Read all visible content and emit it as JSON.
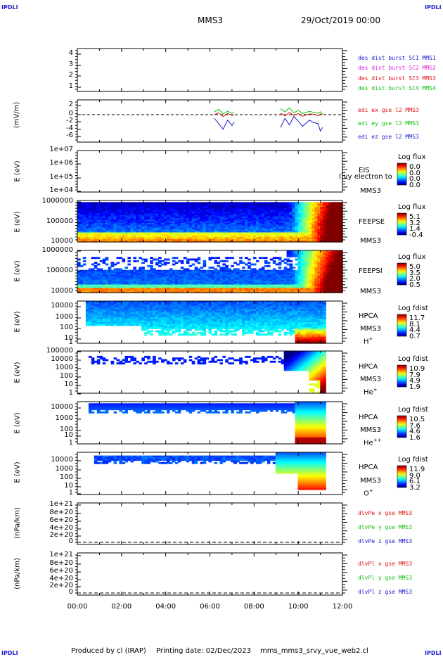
{
  "header": {
    "corner_tl": "IPDLI",
    "corner_tr": "IPDLI",
    "corner_bl": "IPDLI",
    "corner_br": "IPDLI",
    "mission": "MMS3",
    "date": "29/Oct/2019 00:00"
  },
  "footer": {
    "produced": "Produced by cl (IRAP)",
    "printing": "Printing date: 02/Dec/2023",
    "file": "mms_mms3_srvy_vue_web2.cl"
  },
  "colors": {
    "mms1": "#1a1ad0",
    "mms2": "#e020e0",
    "mms3": "#e01010",
    "mms4": "#10c010"
  },
  "chart_data": [
    {
      "type": "line",
      "panel": "dist",
      "ylabel": "",
      "yticks": [
        "4",
        "3",
        "2",
        "1"
      ],
      "ylim": [
        1,
        4
      ],
      "legend": [
        "des dist burst SC1 MMS1",
        "des dist burst SC2 MMS2",
        "des dist burst SC3 MMS3",
        "des dist burst SC4 MMS4"
      ],
      "series": []
    },
    {
      "type": "line",
      "panel": "edi",
      "ylabel": "(mV/m)",
      "yticks": [
        "2",
        "0",
        "-2",
        "-4",
        "-6"
      ],
      "ylim": [
        -6,
        2
      ],
      "legend": [
        "edi ex gse l2 MMS3",
        "edi ey gse l2 MMS3",
        "edi ez gse l2 MMS3"
      ],
      "x_hours": [
        6.2,
        6.4,
        6.6,
        6.8,
        7.0,
        7.1,
        9.2,
        9.4,
        9.6,
        9.8,
        10.0,
        10.2,
        10.5,
        10.7,
        10.9,
        11.0,
        11.1
      ],
      "series": [
        {
          "name": "edi ex gse l2 MMS3",
          "values": [
            0,
            0.5,
            -0.5,
            0.3,
            -0.2,
            0,
            0.4,
            -0.3,
            0.6,
            -0.2,
            0.3,
            -0.4,
            0.2,
            0.1,
            -0.3,
            0.2,
            0
          ]
        },
        {
          "name": "edi ey gse l2 MMS3",
          "values": [
            0.8,
            1.5,
            0.2,
            0.9,
            0.4,
            0.6,
            1.6,
            0.8,
            1.9,
            0.5,
            1.2,
            0.3,
            0.9,
            0.6,
            0.4,
            0.8,
            0.2
          ]
        },
        {
          "name": "edi ez gse l2 MMS3",
          "values": [
            -1,
            -2.5,
            -4,
            -1.5,
            -3,
            -2,
            -3.5,
            -1,
            -2.8,
            -0.5,
            -1.8,
            -3.2,
            -1.5,
            -2.2,
            -2.5,
            -4.5,
            -3.5
          ]
        }
      ]
    },
    {
      "type": "heatmap",
      "panel": "eis",
      "ylabel": "E (eV)",
      "yticks": [
        "1e+07",
        "1e+06",
        "1e+05",
        "1e+04"
      ],
      "ylim": [
        10000,
        10000000
      ],
      "side": [
        "EIS",
        "MMS3"
      ],
      "overlap_label": "l)vy electron to",
      "cbar_title": "Log flux",
      "cbar_values": [
        "0.0",
        "0.0",
        "0.0",
        "0.0"
      ]
    },
    {
      "type": "heatmap",
      "panel": "feepse",
      "ylabel": "E (eV)",
      "yticks": [
        "1000000",
        "100000",
        "10000"
      ],
      "ylim": [
        10000,
        1000000
      ],
      "side": [
        "FEEPSE",
        "MMS3"
      ],
      "cbar_title": "Log flux",
      "cbar_values": [
        "5.1",
        "3.2",
        "1.4",
        "-0.4"
      ]
    },
    {
      "type": "heatmap",
      "panel": "feepsi",
      "ylabel": "E (eV)",
      "yticks": [
        "1000000",
        "100000",
        "10000"
      ],
      "ylim": [
        10000,
        1000000
      ],
      "side": [
        "FEEPSI",
        "MMS3"
      ],
      "cbar_title": "Log flux",
      "cbar_values": [
        "5.0",
        "3.5",
        "2.0",
        "0.5"
      ]
    },
    {
      "type": "heatmap",
      "panel": "hpca_h",
      "ylabel": "E (eV)",
      "yticks": [
        "10000",
        "1000",
        "100",
        "10",
        "1"
      ],
      "ylim": [
        1,
        40000
      ],
      "side": [
        "HPCA",
        "MMS3"
      ],
      "species": "H",
      "species_sup": "+",
      "cbar_title": "Log fdist",
      "cbar_values": [
        "11.7",
        "8.1",
        "4.4",
        "0.7"
      ]
    },
    {
      "type": "heatmap",
      "panel": "hpca_he",
      "ylabel": "E (eV)",
      "yticks": [
        "100000",
        "10000",
        "1000",
        "100",
        "10",
        "1"
      ],
      "ylim": [
        1,
        100000
      ],
      "side": [
        "HPCA",
        "MMS3"
      ],
      "species": "He",
      "species_sup": "+",
      "cbar_title": "Log fdist",
      "cbar_values": [
        "10.9",
        "7.9",
        "4.9",
        "1.9"
      ]
    },
    {
      "type": "heatmap",
      "panel": "hpca_he2",
      "ylabel": "E (eV)",
      "yticks": [
        "10000",
        "1000",
        "100",
        "10",
        "1"
      ],
      "ylim": [
        1,
        40000
      ],
      "side": [
        "HPCA",
        "MMS3"
      ],
      "species": "He",
      "species_sup": "++",
      "cbar_title": "Log fdist",
      "cbar_values": [
        "10.5",
        "7.6",
        "4.6",
        "1.6"
      ]
    },
    {
      "type": "heatmap",
      "panel": "hpca_o",
      "ylabel": "E (eV)",
      "yticks": [
        "10000",
        "1000",
        "100",
        "10",
        "1"
      ],
      "ylim": [
        1,
        40000
      ],
      "side": [
        "HPCA",
        "MMS3"
      ],
      "species": "O",
      "species_sup": "+",
      "cbar_title": "Log fdist",
      "cbar_values": [
        "11.9",
        "9.0",
        "6.1",
        "3.2"
      ]
    },
    {
      "type": "line",
      "panel": "divpe",
      "ylabel": "(nPa/km)",
      "yticks": [
        "1e+21",
        "8e+20",
        "6e+20",
        "4e+20",
        "2e+20",
        "0"
      ],
      "ylim": [
        0,
        1e+21
      ],
      "legend": [
        "dlvPe x gse MMS3",
        "dlvPe y gse MMS3",
        "dlvPe z gse MMS3"
      ],
      "series": []
    },
    {
      "type": "line",
      "panel": "divpi",
      "ylabel": "(nPa/km)",
      "yticks": [
        "1e+21",
        "8e+20",
        "6e+20",
        "4e+20",
        "2e+20",
        "0"
      ],
      "ylim": [
        0,
        1e+21
      ],
      "legend": [
        "dlvPl x gse MMS3",
        "dlvPl y gse MMS3",
        "dlvPl z gse MMS3"
      ],
      "series": []
    }
  ],
  "x_axis": {
    "ticks": [
      "00:00",
      "02:00",
      "04:00",
      "06:00",
      "08:00",
      "10:00",
      "12:00"
    ],
    "xlim_hours": [
      0,
      12
    ]
  }
}
